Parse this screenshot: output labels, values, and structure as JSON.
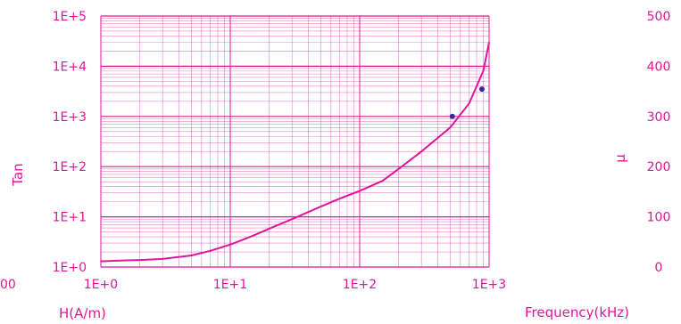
{
  "chart_data": {
    "type": "line",
    "title": "",
    "x_axis": {
      "label": "H(A/m)",
      "scale": "log",
      "range": [
        1,
        1000
      ],
      "tick_labels": [
        "1E+0",
        "1E+1",
        "1E+2",
        "1E+3"
      ]
    },
    "x2_axis": {
      "label": "Frequency(kHz)"
    },
    "y_left": {
      "label": "Tan",
      "scale": "log",
      "range": [
        1,
        100000
      ],
      "tick_labels": [
        "1E+0",
        "1E+1",
        "1E+2",
        "1E+3",
        "1E+4",
        "1E+5"
      ]
    },
    "y_right": {
      "label": "μ",
      "scale": "linear",
      "range": [
        0,
        500
      ],
      "tick_labels": [
        "0",
        "100",
        "200",
        "300",
        "400",
        "500"
      ]
    },
    "left_edge_label": "00",
    "grid": true,
    "series": [
      {
        "color": "#e0169a",
        "x": [
          1,
          1.5,
          2,
          3,
          5,
          7,
          10,
          15,
          20,
          30,
          50,
          70,
          100,
          150,
          200,
          300,
          500,
          700,
          900,
          1000
        ],
        "y": [
          1.3,
          1.35,
          1.38,
          1.45,
          1.7,
          2.1,
          2.8,
          4.2,
          5.8,
          9,
          16,
          23,
          33,
          52,
          90,
          200,
          600,
          1800,
          8000,
          30000
        ]
      }
    ],
    "markers": [
      {
        "color": "#3b2a9e",
        "x": 520,
        "y": 1000
      },
      {
        "color": "#3b2a9e",
        "x": 880,
        "y": 3500
      }
    ]
  }
}
